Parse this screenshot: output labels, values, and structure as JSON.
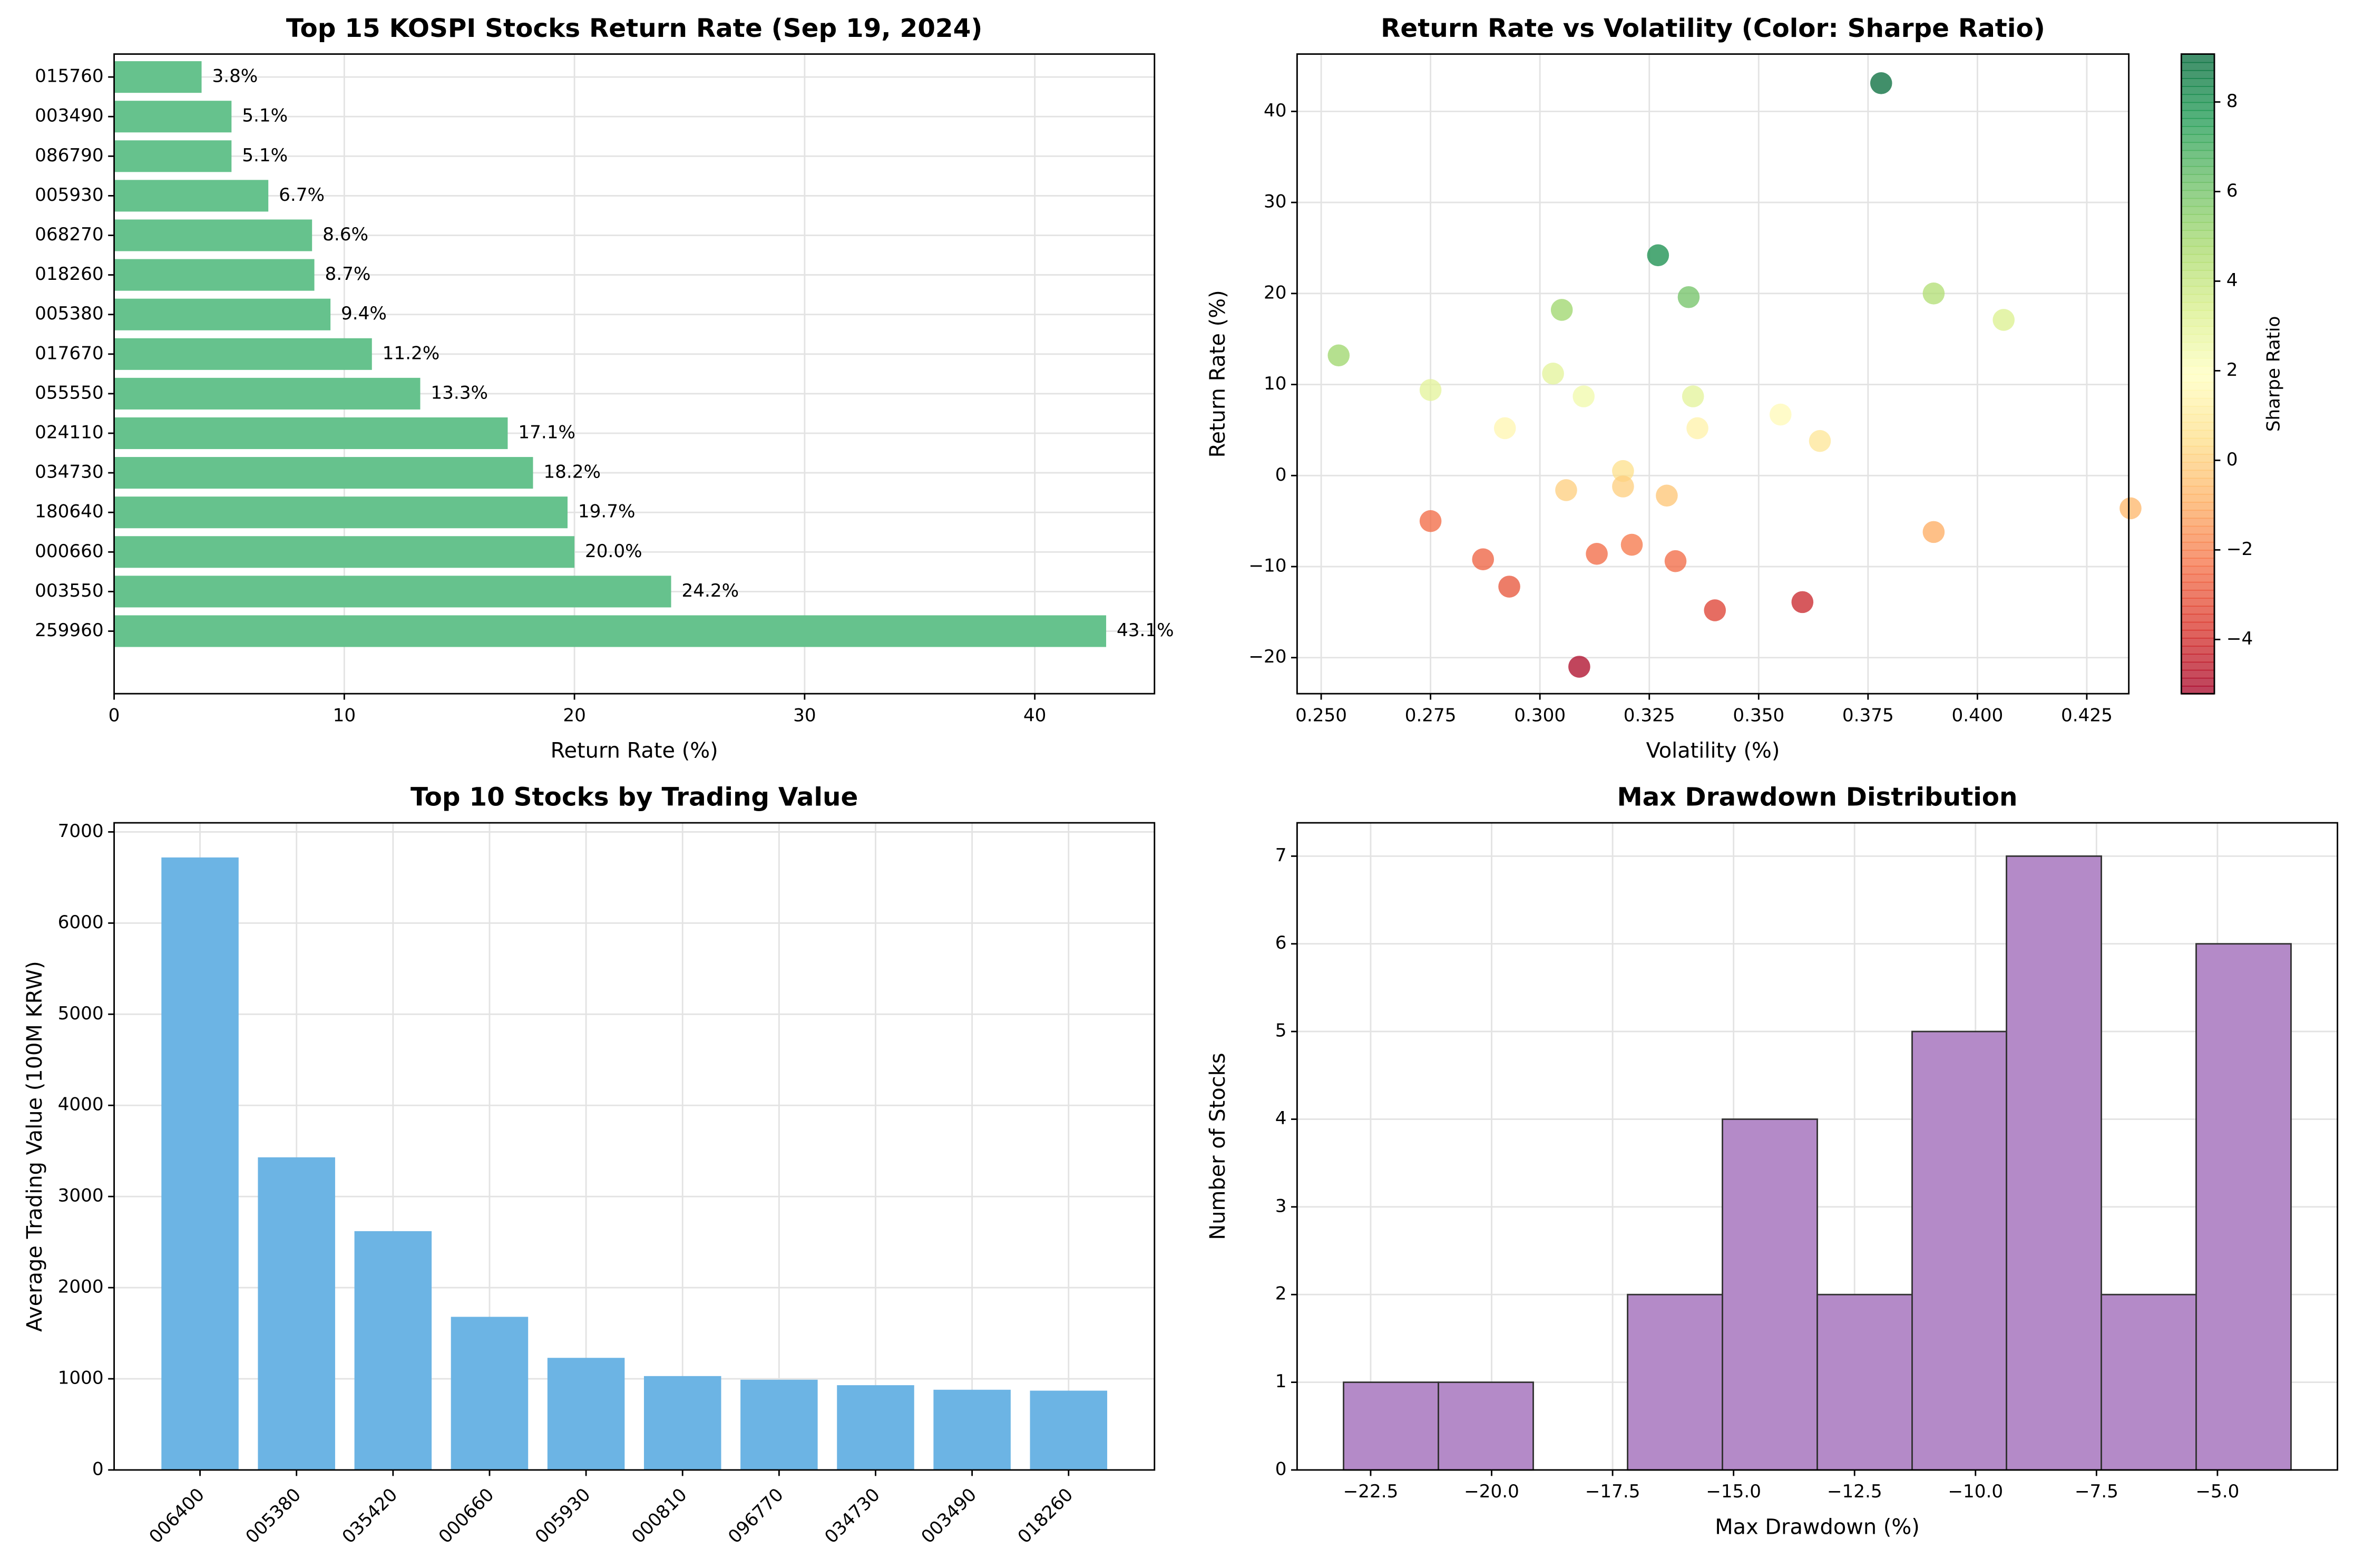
{
  "chart_data": [
    {
      "type": "hbar",
      "title": "Top 15 KOSPI Stocks Return Rate (Sep 19, 2024)",
      "xlabel": "Return Rate (%)",
      "categories": [
        "015760",
        "003490",
        "086790",
        "005930",
        "068270",
        "018260",
        "005380",
        "017670",
        "055550",
        "024110",
        "034730",
        "180640",
        "000660",
        "003550",
        "259960"
      ],
      "values": [
        3.8,
        5.1,
        5.1,
        6.7,
        8.6,
        8.7,
        9.4,
        11.2,
        13.3,
        17.1,
        18.2,
        19.7,
        20.0,
        24.2,
        43.1
      ],
      "value_labels": [
        "3.8%",
        "5.1%",
        "5.1%",
        "6.7%",
        "8.6%",
        "8.7%",
        "9.4%",
        "11.2%",
        "13.3%",
        "17.1%",
        "18.2%",
        "19.7%",
        "20.0%",
        "24.2%",
        "43.1%"
      ],
      "color": "#66c28d",
      "xlim": [
        0,
        45.2
      ],
      "xticks": [
        0,
        10,
        20,
        30,
        40
      ],
      "grid": true
    },
    {
      "type": "scatter",
      "title": "Return Rate vs Volatility (Color: Sharpe Ratio)",
      "xlabel": "Volatility (%)",
      "ylabel": "Return Rate (%)",
      "x": [
        0.254,
        0.275,
        0.275,
        0.287,
        0.292,
        0.293,
        0.303,
        0.305,
        0.306,
        0.309,
        0.31,
        0.313,
        0.319,
        0.319,
        0.321,
        0.327,
        0.329,
        0.331,
        0.334,
        0.335,
        0.336,
        0.34,
        0.355,
        0.36,
        0.364,
        0.378,
        0.39,
        0.39,
        0.406,
        0.435
      ],
      "values": [
        13.2,
        9.4,
        -5.0,
        -9.2,
        5.2,
        -12.2,
        11.2,
        18.2,
        -1.6,
        -21.0,
        8.7,
        -8.6,
        0.5,
        -1.2,
        -7.6,
        24.2,
        -2.2,
        -9.4,
        19.6,
        8.7,
        5.2,
        -14.8,
        6.7,
        -13.9,
        3.8,
        43.1,
        -6.2,
        20.0,
        17.1,
        -3.6
      ],
      "color_values": [
        5.0,
        3.0,
        -2.5,
        -2.7,
        1.5,
        -3.0,
        3.0,
        5.0,
        0.0,
        -5.0,
        2.5,
        -2.5,
        0.5,
        0.0,
        -2.2,
        8.0,
        -0.3,
        -2.5,
        6.0,
        3.0,
        1.3,
        -3.5,
        1.7,
        -4.2,
        0.8,
        9.0,
        -1.0,
        4.5,
        3.3,
        -0.7
      ],
      "colormap": [
        "#a50026",
        "#d73027",
        "#f46d43",
        "#fdae61",
        "#fee08b",
        "#ffffbf",
        "#d9ef8b",
        "#a6d96a",
        "#66bd63",
        "#1a9850",
        "#006837"
      ],
      "colorbar_label": "Sharpe Ratio",
      "clim": [
        -5.21,
        9.07
      ],
      "cticks": [
        {
          "value": -4,
          "label": "−4"
        },
        {
          "value": -2,
          "label": "−2"
        },
        0,
        2,
        4,
        6,
        8
      ],
      "xlim": [
        0.2445,
        0.4346
      ],
      "xticks": [
        {
          "value": 0.25,
          "label": "0.250"
        },
        {
          "value": 0.275,
          "label": "0.275"
        },
        {
          "value": 0.3,
          "label": "0.300"
        },
        {
          "value": 0.325,
          "label": "0.325"
        },
        {
          "value": 0.35,
          "label": "0.350"
        },
        {
          "value": 0.375,
          "label": "0.375"
        },
        {
          "value": 0.4,
          "label": "0.400"
        },
        {
          "value": 0.425,
          "label": "0.425"
        }
      ],
      "ylim": [
        -23.96,
        46.3
      ],
      "yticks": [
        {
          "value": -20,
          "label": "−20"
        },
        {
          "value": -10,
          "label": "−10"
        },
        0,
        10,
        20,
        30,
        40
      ],
      "grid": true
    },
    {
      "type": "bar",
      "title": "Top 10 Stocks by Trading Value",
      "ylabel": "Average Trading Value (100M KRW)",
      "categories": [
        "006400",
        "005380",
        "035420",
        "000660",
        "005930",
        "000810",
        "096770",
        "034730",
        "003490",
        "018260"
      ],
      "values": [
        6720,
        3430,
        2620,
        1680,
        1230,
        1030,
        990,
        930,
        880,
        870
      ],
      "color": "#6cb4e4",
      "ylim": [
        0,
        7100
      ],
      "yticks": [
        0,
        1000,
        2000,
        3000,
        4000,
        5000,
        6000,
        7000
      ],
      "grid": true
    },
    {
      "type": "histogram",
      "title": "Max Drawdown Distribution",
      "xlabel": "Max Drawdown (%)",
      "ylabel": "Number of Stocks",
      "bins": [
        -23.06,
        -21.1,
        -19.14,
        -17.19,
        -15.23,
        -13.27,
        -11.31,
        -9.36,
        -7.4,
        -5.44,
        -3.48
      ],
      "counts": [
        1,
        1,
        0,
        2,
        4,
        2,
        5,
        7,
        2,
        6
      ],
      "color": "#b48ac8",
      "edgecolor": "#333333",
      "xlim": [
        -24.02,
        -2.52
      ],
      "xticks": [
        {
          "value": -22.5,
          "label": "−22.5"
        },
        {
          "value": -20,
          "label": "−20.0"
        },
        {
          "value": -17.5,
          "label": "−17.5"
        },
        {
          "value": -15,
          "label": "−15.0"
        },
        {
          "value": -12.5,
          "label": "−12.5"
        },
        {
          "value": -10,
          "label": "−10.0"
        },
        {
          "value": -7.5,
          "label": "−7.5"
        },
        {
          "value": -5,
          "label": "−5.0"
        }
      ],
      "ylim": [
        0,
        7.38
      ],
      "yticks": [
        0,
        1,
        2,
        3,
        4,
        5,
        6,
        7
      ],
      "grid": true
    }
  ]
}
